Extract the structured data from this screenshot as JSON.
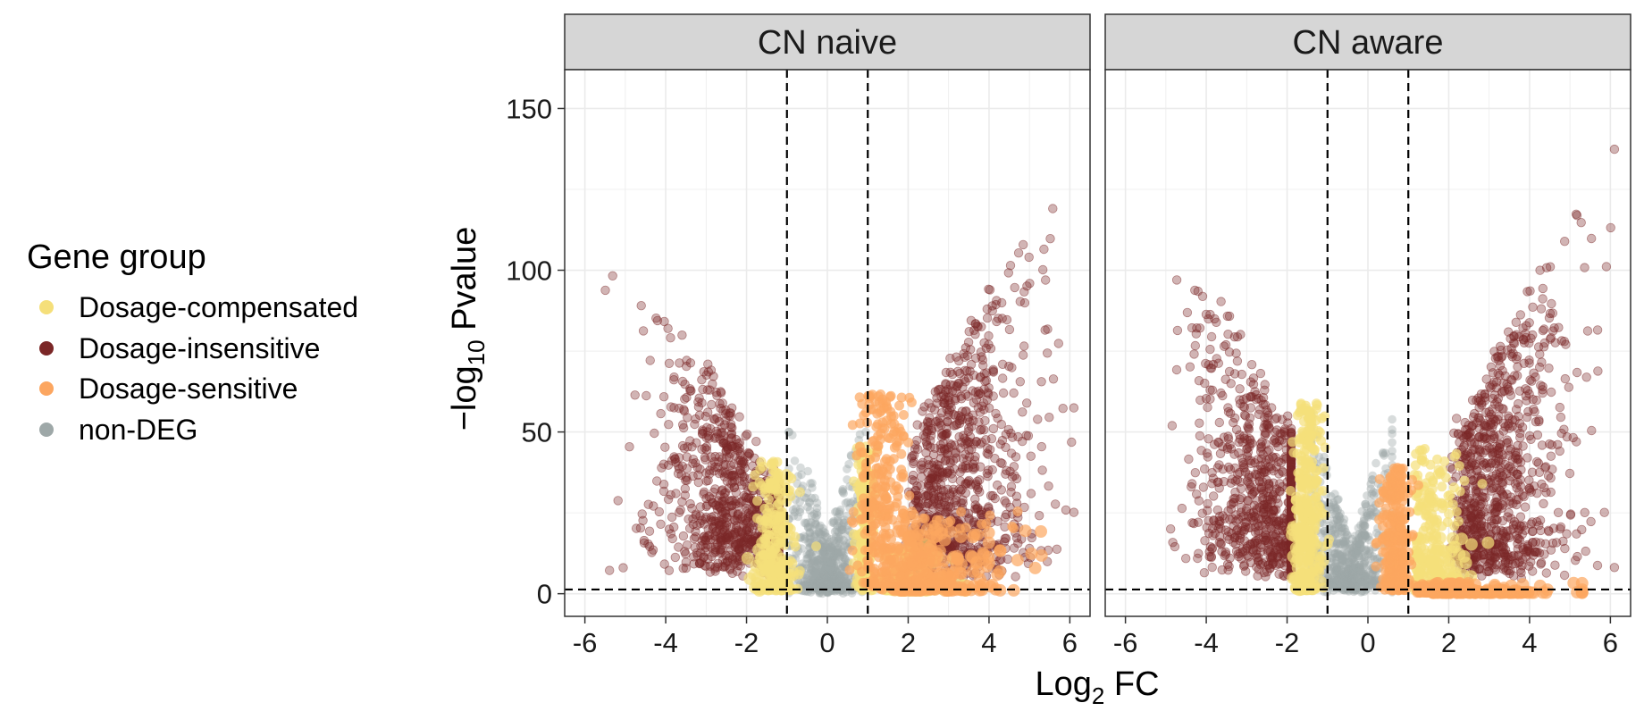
{
  "legend": {
    "title": "Gene group",
    "items": [
      {
        "label": "Dosage-compensated",
        "color": "#f5df7a"
      },
      {
        "label": "Dosage-insensitive",
        "color": "#7b2727"
      },
      {
        "label": "Dosage-sensitive",
        "color": "#fca660"
      },
      {
        "label": "non-DEG",
        "color": "#9ea8a8"
      }
    ]
  },
  "axes": {
    "xlabel_main": "Log",
    "xlabel_sub": "2",
    "xlabel_rest": " FC",
    "ylabel_main": "−log",
    "ylabel_sub": "10",
    "ylabel_rest": " Pvalue"
  },
  "chart_data": {
    "type": "scatter",
    "facets": [
      "CN naive",
      "CN aware"
    ],
    "xlim": [
      -6.5,
      6.5
    ],
    "ylim": [
      -7,
      162
    ],
    "x_ticks": [
      -6,
      -4,
      -2,
      0,
      2,
      4,
      6
    ],
    "x_tick_labels": [
      "-6",
      "-4",
      "-2",
      "0",
      "2",
      "4",
      "6"
    ],
    "y_ticks": [
      0,
      50,
      100,
      150
    ],
    "y_tick_labels": [
      "0",
      "50",
      "100",
      "150"
    ],
    "threshold_lines": {
      "x": [
        -1,
        1
      ],
      "y": 1.3
    },
    "grid": true,
    "legend_placement": "left",
    "series": [
      {
        "name": "Dosage-compensated",
        "color": "#f5df7a"
      },
      {
        "name": "Dosage-insensitive",
        "color": "#7b2727"
      },
      {
        "name": "Dosage-sensitive",
        "color": "#fca660"
      },
      {
        "name": "non-DEG",
        "color": "#9ea8a8"
      }
    ]
  }
}
